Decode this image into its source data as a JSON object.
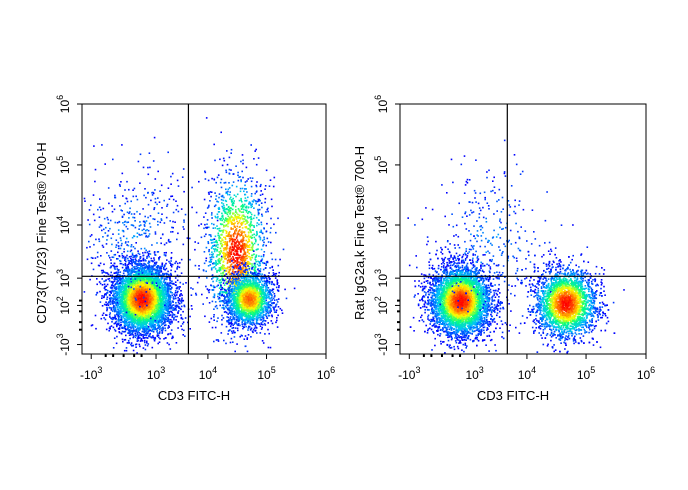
{
  "chart_data": [
    {
      "type": "scatter",
      "title": "",
      "xlabel": "CD3 FITC-H",
      "ylabel": "CD73(TY/23) Fine Test® 700-H",
      "x_scale": "biexponential",
      "y_scale": "biexponential",
      "x_ticks": [
        {
          "value": -1000,
          "base": "-10",
          "exp": "3"
        },
        {
          "value": 1000,
          "base": "10",
          "exp": "3"
        },
        {
          "value": 10000,
          "base": "10",
          "exp": "4"
        },
        {
          "value": 100000,
          "base": "10",
          "exp": "5"
        },
        {
          "value": 1000000,
          "base": "10",
          "exp": "6"
        }
      ],
      "y_ticks": [
        {
          "value": -1000,
          "base": "-10",
          "exp": "3"
        },
        {
          "value": 100,
          "base": "10",
          "exp": "2"
        },
        {
          "value": 1000,
          "base": "10",
          "exp": "3"
        },
        {
          "value": 10000,
          "base": "10",
          "exp": "4"
        },
        {
          "value": 100000,
          "base": "10",
          "exp": "5"
        },
        {
          "value": 1000000,
          "base": "10",
          "exp": "6"
        }
      ],
      "quadrant_gate": {
        "x": 4500,
        "y": 1100
      },
      "populations": [
        {
          "x": 400,
          "y": 250,
          "count": 5200,
          "density": "high"
        },
        {
          "x": 30000,
          "y": 3500,
          "count": 1700,
          "density": "high"
        },
        {
          "x": 50000,
          "y": 250,
          "count": 1900,
          "density": "medium"
        },
        {
          "x": 200,
          "y": 6000,
          "count": 500,
          "density": "low"
        }
      ],
      "colormap": [
        "#0000ff",
        "#00c0ff",
        "#00ff80",
        "#ffff00",
        "#ff8000",
        "#ff0000"
      ]
    },
    {
      "type": "scatter",
      "title": "",
      "xlabel": "CD3 FITC-H",
      "ylabel": "Rat IgG2a,k Fine Test® 700-H",
      "x_scale": "biexponential",
      "y_scale": "biexponential",
      "x_ticks": [
        {
          "value": -1000,
          "base": "-10",
          "exp": "3"
        },
        {
          "value": 1000,
          "base": "10",
          "exp": "3"
        },
        {
          "value": 10000,
          "base": "10",
          "exp": "4"
        },
        {
          "value": 100000,
          "base": "10",
          "exp": "5"
        },
        {
          "value": 1000000,
          "base": "10",
          "exp": "6"
        }
      ],
      "y_ticks": [
        {
          "value": -1000,
          "base": "-10",
          "exp": "3"
        },
        {
          "value": 100,
          "base": "10",
          "exp": "2"
        },
        {
          "value": 1000,
          "base": "10",
          "exp": "3"
        },
        {
          "value": 10000,
          "base": "10",
          "exp": "4"
        },
        {
          "value": 100000,
          "base": "10",
          "exp": "5"
        },
        {
          "value": 1000000,
          "base": "10",
          "exp": "6"
        }
      ],
      "quadrant_gate": {
        "x": 4500,
        "y": 1100
      },
      "populations": [
        {
          "x": 400,
          "y": 200,
          "count": 5000,
          "density": "high"
        },
        {
          "x": 45000,
          "y": 150,
          "count": 3200,
          "density": "high"
        },
        {
          "x": 2000,
          "y": 5000,
          "count": 350,
          "density": "low"
        }
      ],
      "colormap": [
        "#0000ff",
        "#00c0ff",
        "#00ff80",
        "#ffff00",
        "#ff8000",
        "#ff0000"
      ]
    }
  ]
}
